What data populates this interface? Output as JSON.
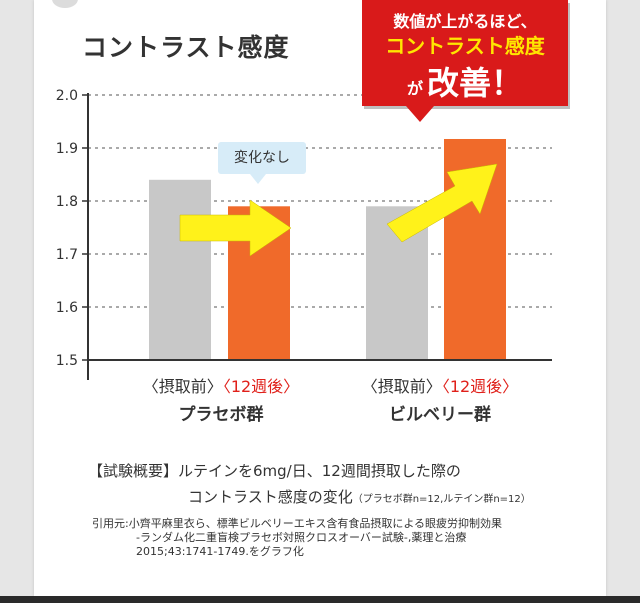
{
  "chart_data": {
    "type": "bar",
    "title": "コントラスト感度",
    "ylim": [
      1.5,
      2.0
    ],
    "yticks": [
      "1.5",
      "1.6",
      "1.7",
      "1.8",
      "1.9",
      "2.0"
    ],
    "grid": true,
    "groups": [
      {
        "name": "プラセボ群",
        "bars": [
          {
            "label": "〈摂取前〉",
            "value": 1.84,
            "color": "#c8c8c8"
          },
          {
            "label": "〈12週後〉",
            "value": 1.79,
            "color": "#f06a2a"
          }
        ]
      },
      {
        "name": "ビルベリー群",
        "bars": [
          {
            "label": "〈摂取前〉",
            "value": 1.79,
            "color": "#c8c8c8"
          },
          {
            "label": "〈12週後〉",
            "value": 1.917,
            "color": "#f06a2a"
          }
        ]
      }
    ],
    "annotations": {
      "placebo_badge": "変化なし",
      "callout_line1": "数値が上がるほど、",
      "callout_line2": "コントラスト感度",
      "callout_line3_small": "が",
      "callout_line3_big": "改善！"
    }
  },
  "colors": {
    "before": "#c8c8c8",
    "after": "#f06a2a",
    "label_after": "#e0201a",
    "arrow": "#fff21a",
    "callout": "#d91a1a"
  },
  "note": {
    "line1": "【試験概要】ルテインを6mg/日、12週間摂取した際の",
    "line2": "コントラスト感度の変化",
    "line2_small": "（プラセボ群n=12,ルテイン群n=12）"
  },
  "citation": {
    "line1": "引用元:小齊平麻里衣ら、標準ビルベリーエキス含有食品摂取による眼疲労抑制効果",
    "line2": "-ランダム化二重盲検プラセボ対照クロスオーバー試験-,薬理と治療",
    "line3": "2015;43:1741-1749.をグラフ化"
  }
}
